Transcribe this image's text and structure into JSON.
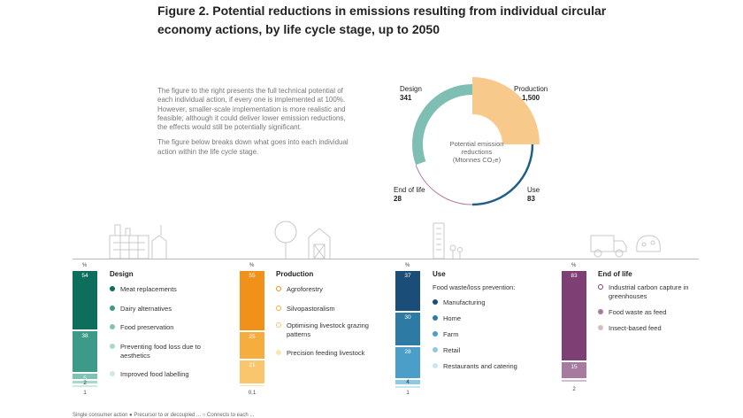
{
  "title": "Figure 2. Potential reductions in emissions resulting from individual circular economy actions, by life cycle stage, up to 2050",
  "intro": {
    "p1": "The figure to the right presents the full technical potential of each individual action, if every one is implemented at 100%. However, smaller-scale implementation is more realistic and feasible; although it could deliver lower emission reductions, the effects would still be potentially significant.",
    "p2": "The figure below breaks down what goes into each individual action within the life cycle stage."
  },
  "donut": {
    "center_line1": "Potential emission",
    "center_line2": "reductions",
    "center_line3": "(Mtonnes CO₂e)"
  },
  "footer": "Single consumer action    ● Precursor to or decoupled ...    ○ Connects to each ...",
  "colors": {
    "design": "#7fbfb3",
    "production": "#f7c98a",
    "use": "#1f5f85",
    "end_of_life": "#b07aa5"
  },
  "chart_data": [
    {
      "type": "pie",
      "title": "Potential emission reductions (Mtonnes CO2e)",
      "categories": [
        "Production",
        "Use",
        "End of life",
        "Design"
      ],
      "values": [
        1500,
        83,
        28,
        341
      ],
      "labels": [
        "Production",
        "Use",
        "End of life",
        "Design"
      ],
      "value_labels": [
        "1,500",
        "83",
        "28",
        "341"
      ]
    },
    {
      "type": "bar",
      "title": "Design",
      "unit_label": "%",
      "categories": [
        "Meat replacements",
        "Dairy alternatives",
        "Food preservation",
        "Preventing food loss due to aesthetics",
        "Improved food labelling"
      ],
      "values": [
        54,
        38,
        5,
        2,
        1
      ],
      "value_labels": [
        "54",
        "38",
        "5",
        "2",
        "1"
      ],
      "colors": [
        "#0e6e5c",
        "#3d9a88",
        "#7ec4b6",
        "#a9d8cd",
        "#cfe9e2"
      ]
    },
    {
      "type": "bar",
      "title": "Production",
      "unit_label": "%",
      "categories": [
        "Agroforestry",
        "Silvopastoralism",
        "Optimising livestock grazing patterns",
        "Precision feeding livestock"
      ],
      "values": [
        55,
        25,
        21,
        0.1
      ],
      "value_labels": [
        "55",
        "25",
        "21",
        "0,1"
      ],
      "colors": [
        "#f0921a",
        "#f6ad40",
        "#f9c66e",
        "#fde3b5"
      ]
    },
    {
      "type": "bar",
      "title": "Use",
      "subtitle": "Food waste/loss prevention:",
      "unit_label": "%",
      "categories": [
        "Manufacturing",
        "Home",
        "Farm",
        "Retail",
        "Restaurants and catering"
      ],
      "values": [
        37,
        30,
        28,
        4,
        1
      ],
      "value_labels": [
        "37",
        "30",
        "28",
        "4",
        "1"
      ],
      "colors": [
        "#1a4e78",
        "#2d7aa5",
        "#4a9ec8",
        "#8ec8e4",
        "#c8e6f2"
      ]
    },
    {
      "type": "bar",
      "title": "End of life",
      "unit_label": "%",
      "categories": [
        "Industrial carbon capture in greenhouses",
        "Food waste as feed",
        "Insect-based feed"
      ],
      "values": [
        83,
        15,
        2
      ],
      "value_labels": [
        "83",
        "15",
        "2"
      ],
      "colors": [
        "#7e3f74",
        "#a77aa0",
        "#d2bccf"
      ]
    }
  ]
}
